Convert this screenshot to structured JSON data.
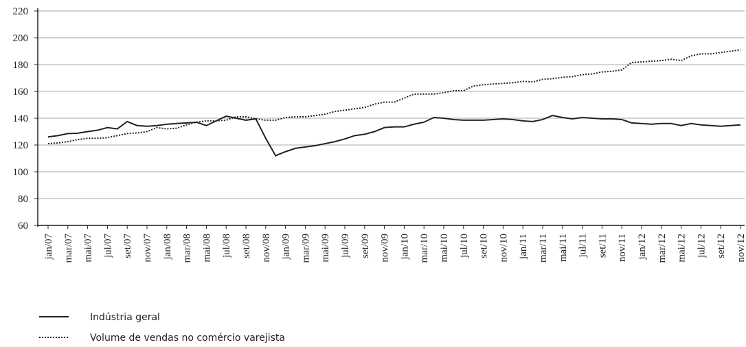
{
  "chart_data": {
    "type": "line",
    "categories": [
      "jan/07",
      null,
      "mar/07",
      null,
      "mai/07",
      null,
      "jul/07",
      null,
      "set/07",
      null,
      "nov/07",
      null,
      "jan/08",
      null,
      "mar/08",
      null,
      "mai/08",
      null,
      "jul/08",
      null,
      "set/08",
      null,
      "nov/08",
      null,
      "jan/09",
      null,
      "mar/09",
      null,
      "mai/09",
      null,
      "jul/09",
      null,
      "set/09",
      null,
      "nov/09",
      null,
      "jan/10",
      null,
      "mar/10",
      null,
      "mai/10",
      null,
      "jul/10",
      null,
      "set/10",
      null,
      "nov/10",
      null,
      "jan/11",
      null,
      "mar/11",
      null,
      "mai/11",
      null,
      "jul/11",
      null,
      "set/11",
      null,
      "nov/11",
      null,
      "jan/12",
      null,
      "mar/12",
      null,
      "mai/12",
      null,
      "jul/12",
      null,
      "set/12",
      null,
      "nov/12"
    ],
    "series": [
      {
        "name": "Indústria geral",
        "color": "#222222",
        "dash": "solid",
        "values": [
          126,
          127,
          128.5,
          128.8,
          130,
          131,
          133,
          132,
          137.5,
          134.5,
          134,
          134.5,
          135.5,
          136,
          136.5,
          137,
          134.5,
          138,
          141.5,
          140,
          138.5,
          139.5,
          125,
          112,
          115,
          117.5,
          118.5,
          119.5,
          121,
          122.5,
          124.5,
          127,
          128,
          130,
          133,
          133.5,
          133.5,
          135.5,
          137,
          140.5,
          140,
          139,
          138.5,
          138.5,
          138.5,
          139,
          139.5,
          139,
          138,
          137.5,
          139,
          142,
          140.5,
          139.5,
          140.5,
          140,
          139.5,
          139.5,
          139,
          136.5,
          136,
          135.5,
          136,
          136,
          134.5,
          136,
          135,
          134.5,
          134,
          134.5,
          135
        ]
      },
      {
        "name": "Volume de vendas no comércio varejista",
        "color": "#222222",
        "dash": "dotted",
        "values": [
          121,
          121.5,
          122.5,
          124,
          125,
          125,
          125.5,
          127,
          128.5,
          129,
          130,
          133,
          132,
          132.5,
          135,
          137,
          138,
          138,
          138.5,
          141,
          141,
          139.5,
          138.5,
          138.5,
          140.5,
          141,
          141,
          142,
          143,
          145,
          146,
          147,
          148,
          150.5,
          152,
          152,
          155,
          158,
          158,
          158,
          159,
          160.5,
          160.5,
          164,
          165,
          165.5,
          166,
          166.5,
          167.5,
          167,
          169,
          169.5,
          170.5,
          171,
          172.5,
          173,
          174.5,
          175,
          176,
          181.5,
          182,
          182.5,
          183,
          184,
          183,
          186.5,
          188,
          188,
          189,
          190,
          191
        ]
      }
    ],
    "ylim": [
      60,
      220
    ],
    "yticks": [
      60,
      80,
      100,
      120,
      140,
      160,
      180,
      200,
      220
    ],
    "grid": true,
    "legend": "bottom-left"
  }
}
